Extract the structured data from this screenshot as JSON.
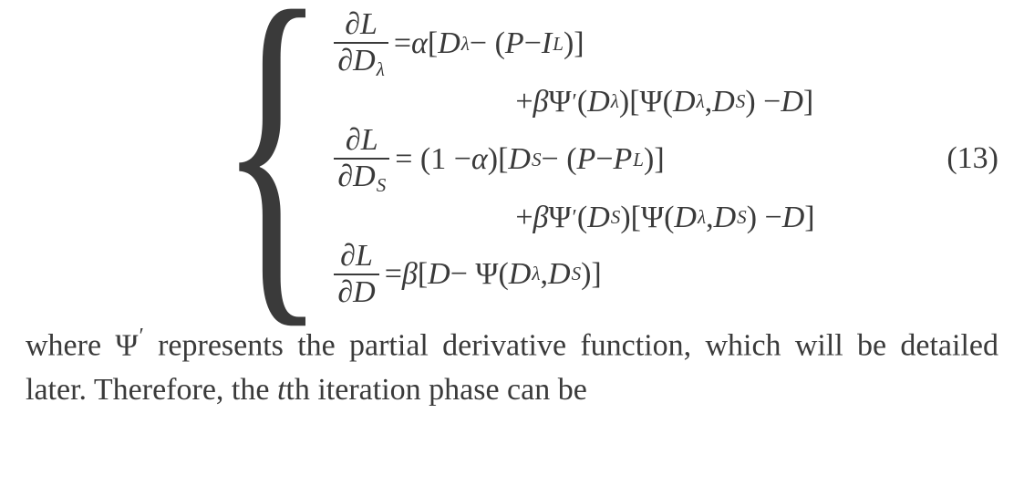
{
  "equation": {
    "label": "(13)",
    "lines": {
      "l1_lhs_num": "∂L",
      "l1_lhs_den_d": "∂",
      "l1_lhs_den_var": "D",
      "l1_lhs_den_sub": "λ",
      "l1_eq": " = ",
      "l1_alpha": "α",
      "l1_open": "[",
      "l1_var1": "D",
      "l1_var1_sub": "λ",
      "l1_minus1": " − (",
      "l1_P": "P",
      "l1_minus2": " − ",
      "l1_I": "I",
      "l1_I_sub": "L",
      "l1_close": ")]",
      "l2_plus": "+",
      "l2_beta": "β",
      "l2_psi1": "Ψ",
      "l2_prime": "′",
      "l2_open1": "(",
      "l2_arg1": "D",
      "l2_arg1_sub": "λ",
      "l2_close1": ")[",
      "l2_psi2": "Ψ(",
      "l2_arg2": "D",
      "l2_arg2_sub": "λ",
      "l2_comma": ", ",
      "l2_arg3": "D",
      "l2_arg3_sub": "S",
      "l2_close2": ") − ",
      "l2_D": "D",
      "l2_close3": "]",
      "l3_lhs_num": "∂L",
      "l3_lhs_den_d": "∂",
      "l3_lhs_den_var": "D",
      "l3_lhs_den_sub": "S",
      "l3_eq": " = (1 − ",
      "l3_alpha": "α",
      "l3_after_alpha": ")[",
      "l3_var1": "D",
      "l3_var1_sub": "S",
      "l3_minus1": " − (",
      "l3_P": "P",
      "l3_minus2": " − ",
      "l3_P2": "P",
      "l3_P2_sub": "L",
      "l3_close": ")]",
      "l4_plus": "+",
      "l4_beta": "β",
      "l4_psi1": "Ψ",
      "l4_prime": "′",
      "l4_open1": "(",
      "l4_arg1": "D",
      "l4_arg1_sub": "S",
      "l4_close1": ")[",
      "l4_psi2": "Ψ(",
      "l4_arg2": "D",
      "l4_arg2_sub": "λ",
      "l4_comma": ", ",
      "l4_arg3": "D",
      "l4_arg3_sub": "S",
      "l4_close2": ") − ",
      "l4_D": "D",
      "l4_close3": "]",
      "l5_lhs_num": "∂L",
      "l5_lhs_den_d": "∂",
      "l5_lhs_den_var": "D",
      "l5_eq": " = ",
      "l5_beta": "β",
      "l5_open": "[",
      "l5_D": "D",
      "l5_minus": " − Ψ(",
      "l5_arg1": "D",
      "l5_arg1_sub": "λ",
      "l5_comma": ", ",
      "l5_arg2": "D",
      "l5_arg2_sub": "S",
      "l5_close": ")]"
    }
  },
  "post_text": {
    "part1": "where Ψ",
    "prime": "′",
    "part2": " represents the partial derivative function, which will be detailed later. Therefore, the ",
    "t": "t",
    "part3": "th iteration phase can be"
  },
  "style": {
    "text_color": "#3a3a3a",
    "background": "#ffffff",
    "font_size_main": 34,
    "font_family": "Times New Roman"
  }
}
